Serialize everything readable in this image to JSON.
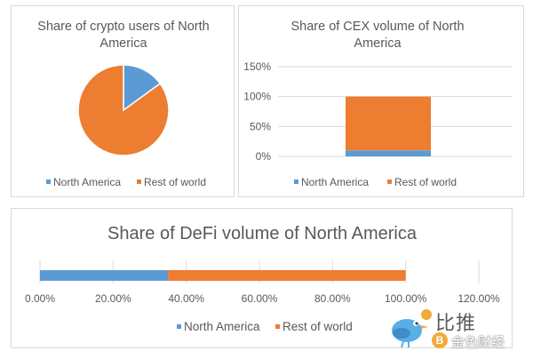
{
  "colors": {
    "north_america": "#5b9bd5",
    "rest_of_world": "#ed7d31",
    "grid": "#d9d9d9",
    "text": "#595959"
  },
  "chart_data": [
    {
      "type": "pie",
      "title_lines": [
        "Share of crypto users of North",
        "America"
      ],
      "categories": [
        "North America",
        "Rest of world"
      ],
      "values": [
        15,
        85
      ],
      "legend": [
        "North America",
        "Rest of world"
      ]
    },
    {
      "type": "bar",
      "stacked": true,
      "title_lines": [
        "Share of CEX volume of North",
        "America"
      ],
      "series": [
        {
          "name": "North America",
          "values": [
            10
          ]
        },
        {
          "name": "Rest of world",
          "values": [
            90
          ]
        }
      ],
      "ylim": [
        0,
        150
      ],
      "yticks": [
        0,
        50,
        100,
        150
      ],
      "ytick_labels": [
        "0%",
        "50%",
        "100%",
        "150%"
      ],
      "legend": [
        "North America",
        "Rest of world"
      ]
    },
    {
      "type": "bar",
      "orientation": "horizontal",
      "stacked": true,
      "title_lines": [
        "Share of DeFi volume of North America"
      ],
      "series": [
        {
          "name": "North America",
          "values": [
            35
          ]
        },
        {
          "name": "Rest of world",
          "values": [
            65
          ]
        }
      ],
      "xlim": [
        0,
        120
      ],
      "xticks": [
        0,
        20,
        40,
        60,
        80,
        100,
        120
      ],
      "xtick_labels": [
        "0.00%",
        "20.00%",
        "40.00%",
        "60.00%",
        "80.00%",
        "100.00%",
        "120.00%"
      ],
      "legend": [
        "North America",
        "Rest of world"
      ]
    }
  ],
  "watermark": {
    "line1": "比推",
    "line2": "金色财经",
    "coin_glyph": "B"
  }
}
